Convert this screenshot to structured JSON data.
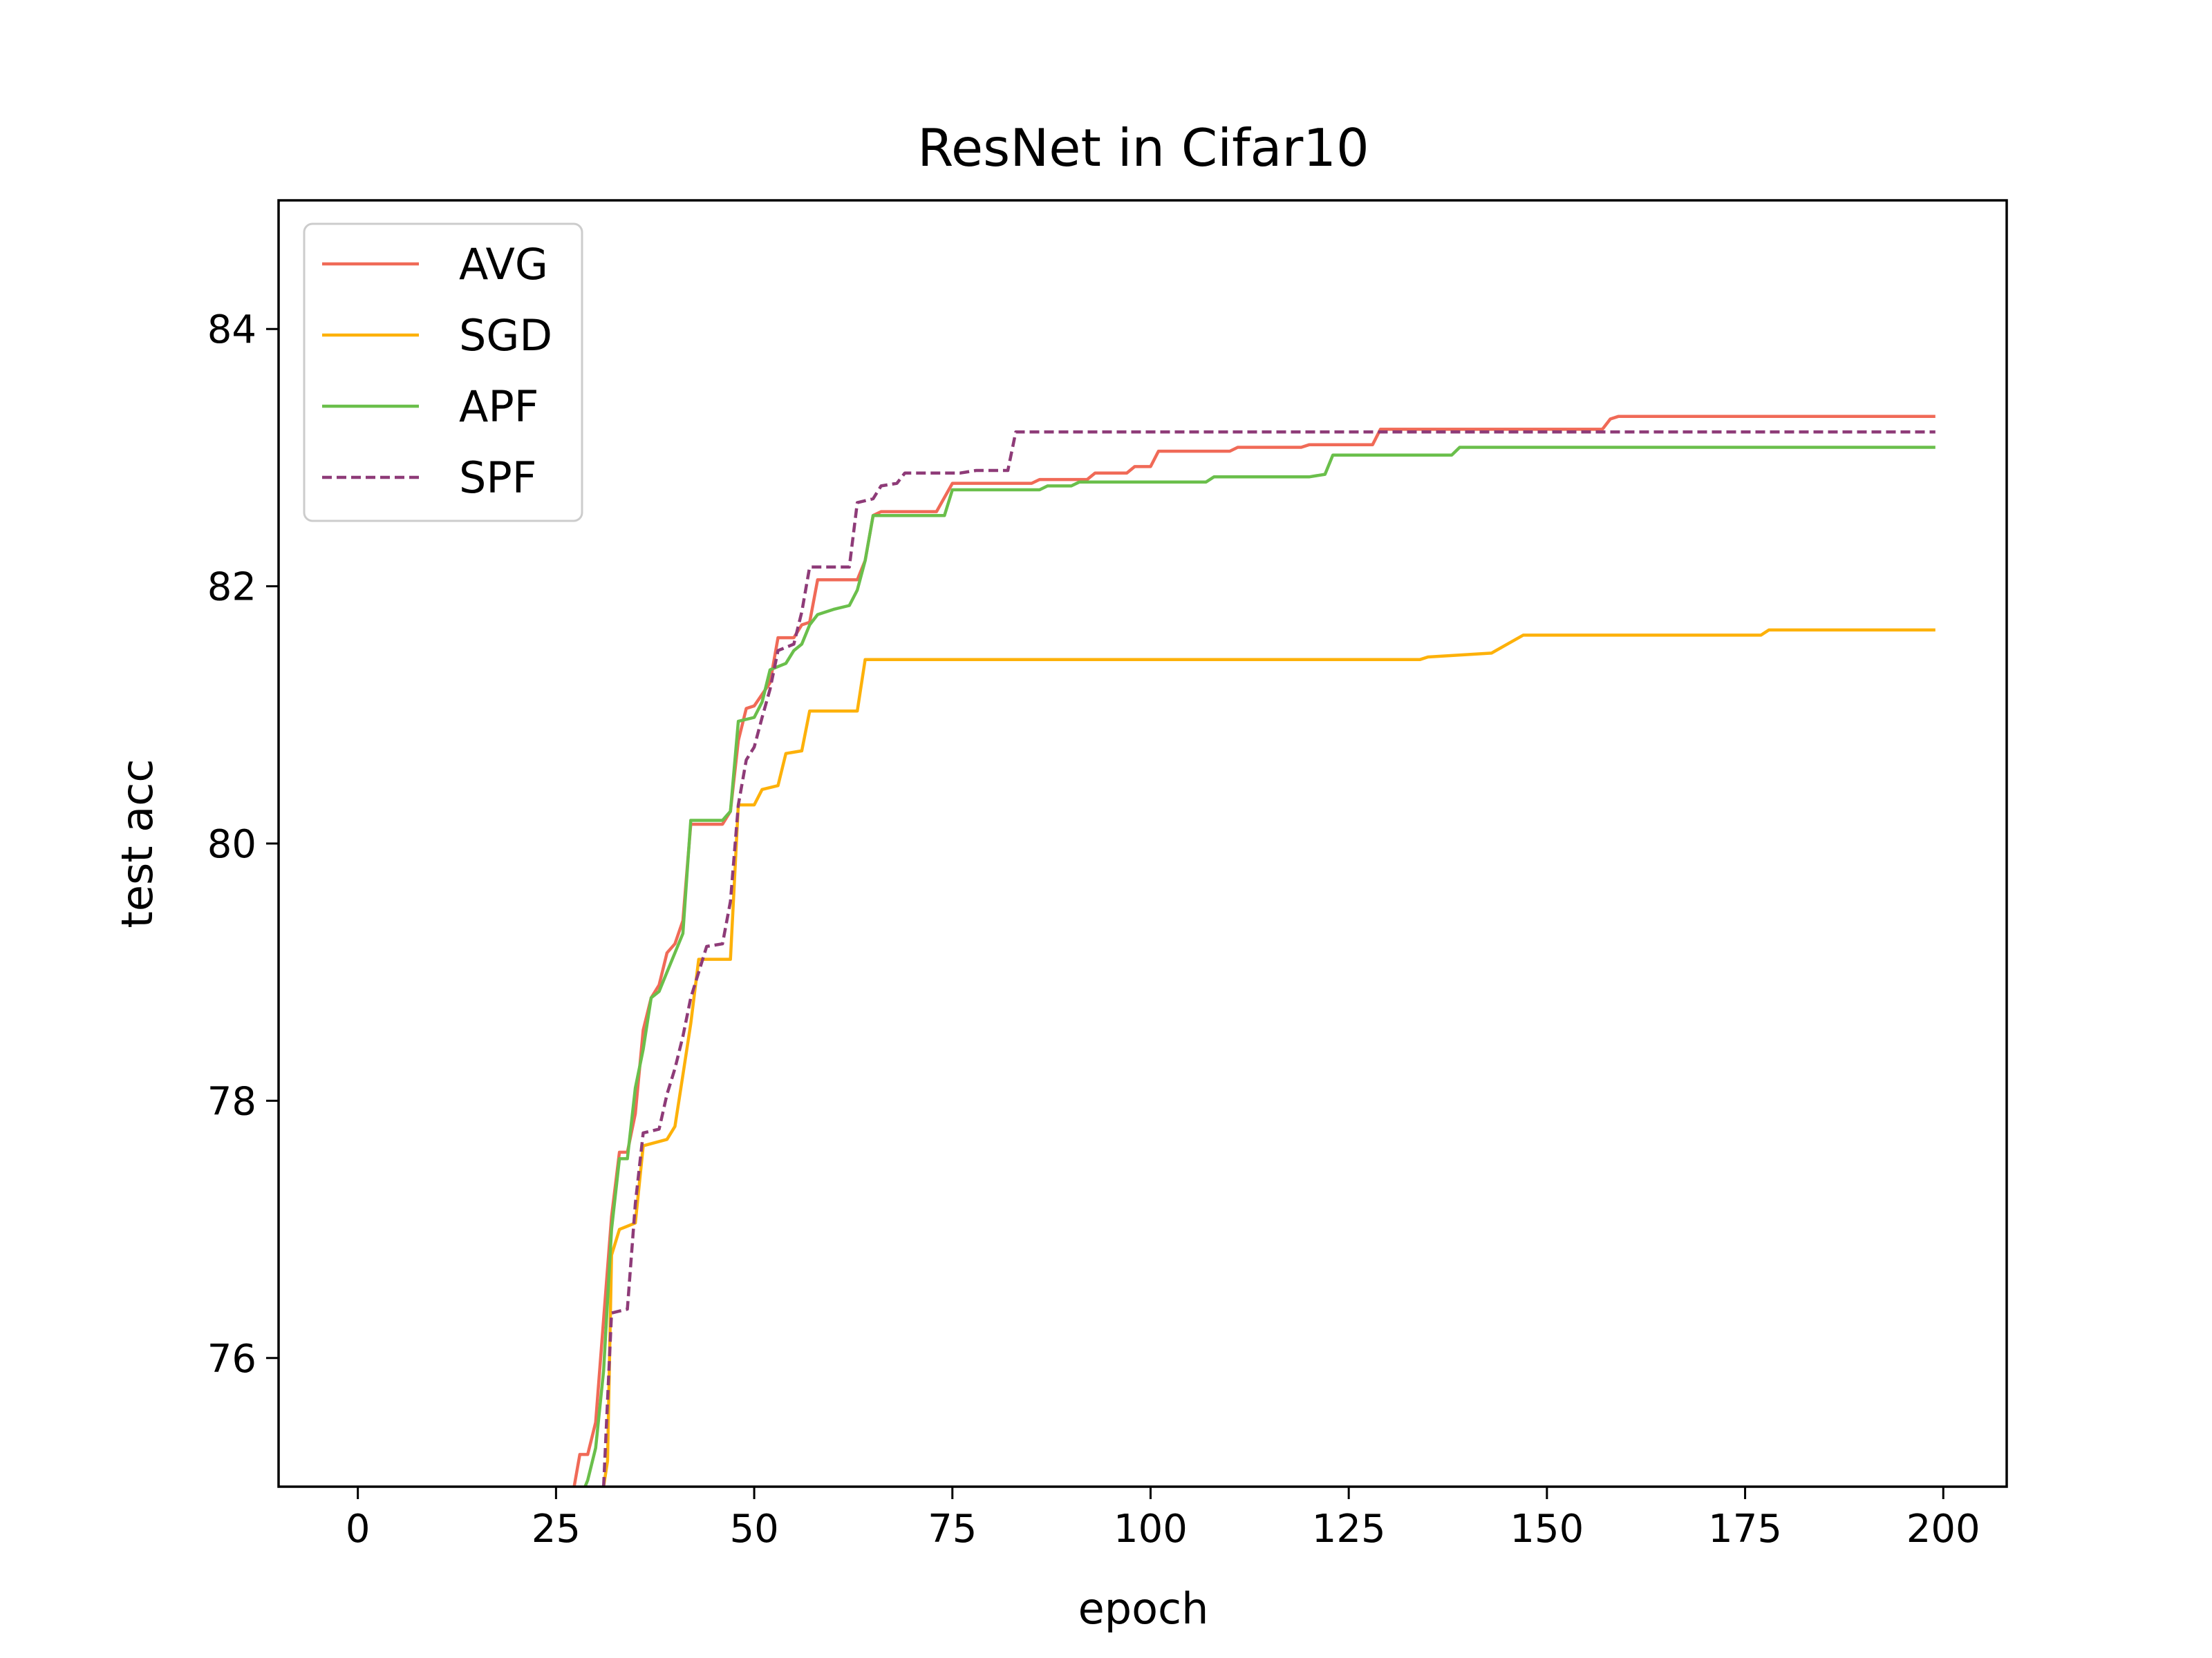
{
  "chart_data": {
    "type": "line",
    "title": "ResNet in Cifar10",
    "xlabel": "epoch",
    "ylabel": "test acc",
    "xlim": [
      -10,
      208
    ],
    "ylim": [
      75,
      85
    ],
    "xticks": [
      0,
      25,
      50,
      75,
      100,
      125,
      150,
      175,
      200
    ],
    "xtick_labels": [
      "0",
      "25",
      "50",
      "75",
      "100",
      "125",
      "150",
      "175",
      "200"
    ],
    "yticks": [
      76,
      78,
      80,
      82,
      84
    ],
    "ytick_labels": [
      "76",
      "78",
      "80",
      "82",
      "84"
    ],
    "grid": false,
    "legend_position": "upper left",
    "series": [
      {
        "name": "AVG",
        "color": "#f06a57",
        "dashed": false,
        "points": [
          [
            27,
            74.9
          ],
          [
            28,
            75.25
          ],
          [
            29,
            75.25
          ],
          [
            30,
            75.5
          ],
          [
            31,
            76.3
          ],
          [
            32,
            77.1
          ],
          [
            33,
            77.6
          ],
          [
            34,
            77.6
          ],
          [
            35,
            77.9
          ],
          [
            36,
            78.55
          ],
          [
            37,
            78.8
          ],
          [
            38,
            78.9
          ],
          [
            39,
            79.15
          ],
          [
            40,
            79.22
          ],
          [
            41,
            79.4
          ],
          [
            42,
            80.15
          ],
          [
            43,
            80.15
          ],
          [
            46,
            80.15
          ],
          [
            47,
            80.25
          ],
          [
            48,
            80.8
          ],
          [
            49,
            81.05
          ],
          [
            50,
            81.07
          ],
          [
            52,
            81.25
          ],
          [
            53,
            81.6
          ],
          [
            55,
            81.6
          ],
          [
            56,
            81.7
          ],
          [
            57,
            81.72
          ],
          [
            58,
            82.05
          ],
          [
            63,
            82.05
          ],
          [
            64,
            82.2
          ],
          [
            65,
            82.55
          ],
          [
            66,
            82.58
          ],
          [
            73,
            82.58
          ],
          [
            75,
            82.8
          ],
          [
            85,
            82.8
          ],
          [
            86,
            82.83
          ],
          [
            92,
            82.83
          ],
          [
            93,
            82.88
          ],
          [
            97,
            82.88
          ],
          [
            98,
            82.93
          ],
          [
            100,
            82.93
          ],
          [
            101,
            83.05
          ],
          [
            110,
            83.05
          ],
          [
            111,
            83.08
          ],
          [
            119,
            83.08
          ],
          [
            120,
            83.1
          ],
          [
            128,
            83.1
          ],
          [
            129,
            83.22
          ],
          [
            157,
            83.22
          ],
          [
            158,
            83.3
          ],
          [
            159,
            83.32
          ],
          [
            199,
            83.32
          ]
        ]
      },
      {
        "name": "SGD",
        "color": "#fdb10a",
        "dashed": false,
        "points": [
          [
            31,
            75.0
          ],
          [
            31.5,
            75.2
          ],
          [
            32,
            76.8
          ],
          [
            33,
            77.0
          ],
          [
            35,
            77.05
          ],
          [
            36,
            77.65
          ],
          [
            39,
            77.7
          ],
          [
            40,
            77.8
          ],
          [
            41,
            78.2
          ],
          [
            42,
            78.6
          ],
          [
            43,
            79.1
          ],
          [
            47,
            79.1
          ],
          [
            48,
            80.3
          ],
          [
            50,
            80.3
          ],
          [
            51,
            80.42
          ],
          [
            53,
            80.45
          ],
          [
            54,
            80.7
          ],
          [
            56,
            80.72
          ],
          [
            57,
            81.03
          ],
          [
            63,
            81.03
          ],
          [
            64,
            81.43
          ],
          [
            134,
            81.43
          ],
          [
            135,
            81.45
          ],
          [
            143,
            81.48
          ],
          [
            145,
            81.55
          ],
          [
            147,
            81.62
          ],
          [
            177,
            81.62
          ],
          [
            178,
            81.66
          ],
          [
            199,
            81.66
          ]
        ]
      },
      {
        "name": "APF",
        "color": "#6abf4b",
        "dashed": false,
        "points": [
          [
            28,
            74.9
          ],
          [
            29,
            75.05
          ],
          [
            30,
            75.3
          ],
          [
            31,
            75.9
          ],
          [
            32,
            77.0
          ],
          [
            33,
            77.55
          ],
          [
            34,
            77.55
          ],
          [
            35,
            78.1
          ],
          [
            36,
            78.4
          ],
          [
            37,
            78.8
          ],
          [
            38,
            78.85
          ],
          [
            39,
            79.0
          ],
          [
            40,
            79.15
          ],
          [
            41,
            79.3
          ],
          [
            42,
            80.18
          ],
          [
            43,
            80.18
          ],
          [
            46,
            80.18
          ],
          [
            47,
            80.25
          ],
          [
            48,
            80.95
          ],
          [
            50,
            80.98
          ],
          [
            51,
            81.1
          ],
          [
            52,
            81.35
          ],
          [
            54,
            81.4
          ],
          [
            55,
            81.5
          ],
          [
            56,
            81.55
          ],
          [
            57,
            81.7
          ],
          [
            58,
            81.78
          ],
          [
            60,
            81.82
          ],
          [
            62,
            81.85
          ],
          [
            63,
            81.97
          ],
          [
            64,
            82.2
          ],
          [
            65,
            82.55
          ],
          [
            74,
            82.55
          ],
          [
            75,
            82.75
          ],
          [
            86,
            82.75
          ],
          [
            87,
            82.78
          ],
          [
            90,
            82.78
          ],
          [
            91,
            82.81
          ],
          [
            107,
            82.81
          ],
          [
            108,
            82.85
          ],
          [
            120,
            82.85
          ],
          [
            122,
            82.87
          ],
          [
            123,
            83.02
          ],
          [
            138,
            83.02
          ],
          [
            139,
            83.08
          ],
          [
            199,
            83.08
          ]
        ]
      },
      {
        "name": "SPF",
        "color": "#8e3b78",
        "dashed": true,
        "points": [
          [
            31,
            75.0
          ],
          [
            32,
            76.35
          ],
          [
            34,
            76.38
          ],
          [
            35,
            77.2
          ],
          [
            36,
            77.75
          ],
          [
            38,
            77.78
          ],
          [
            39,
            78.05
          ],
          [
            40,
            78.25
          ],
          [
            41,
            78.5
          ],
          [
            42,
            78.8
          ],
          [
            43,
            79.0
          ],
          [
            44,
            79.2
          ],
          [
            46,
            79.22
          ],
          [
            47,
            79.55
          ],
          [
            48,
            80.3
          ],
          [
            49,
            80.65
          ],
          [
            50,
            80.75
          ],
          [
            51,
            80.98
          ],
          [
            52,
            81.2
          ],
          [
            53,
            81.5
          ],
          [
            55,
            81.55
          ],
          [
            56,
            81.8
          ],
          [
            57,
            82.15
          ],
          [
            62,
            82.15
          ],
          [
            63,
            82.65
          ],
          [
            65,
            82.68
          ],
          [
            66,
            82.78
          ],
          [
            68,
            82.8
          ],
          [
            69,
            82.88
          ],
          [
            76,
            82.88
          ],
          [
            78,
            82.9
          ],
          [
            82,
            82.9
          ],
          [
            83,
            83.2
          ],
          [
            199,
            83.2
          ]
        ]
      }
    ]
  }
}
